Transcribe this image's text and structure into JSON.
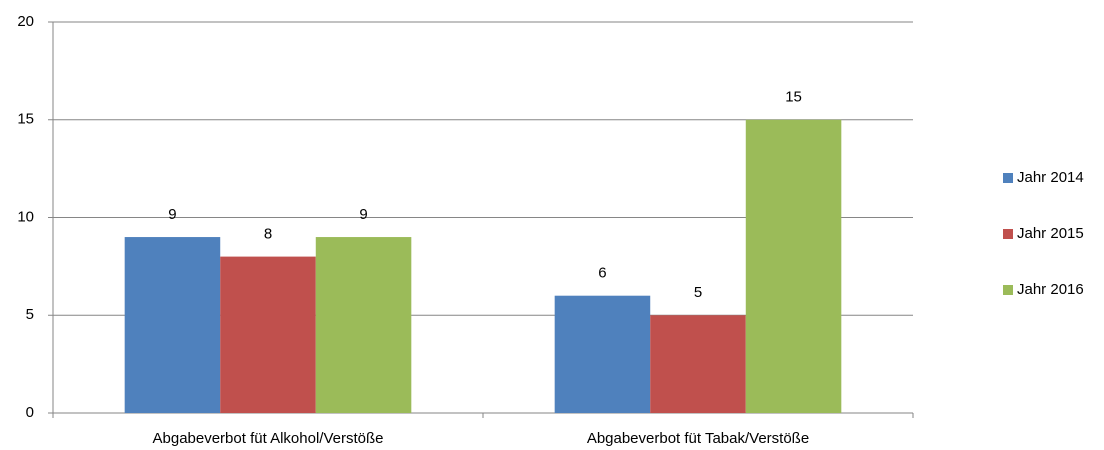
{
  "chart_data": {
    "type": "bar",
    "categories": [
      "Abgabeverbot füt Alkohol/Verstöße",
      "Abgabeverbot füt Tabak/Verstöße"
    ],
    "series": [
      {
        "name": "Jahr 2014",
        "color": "#4f81bd",
        "values": [
          9,
          6
        ]
      },
      {
        "name": "Jahr 2015",
        "color": "#c0504d",
        "values": [
          8,
          5
        ]
      },
      {
        "name": "Jahr 2016",
        "color": "#9bbb59",
        "values": [
          9,
          15
        ]
      }
    ],
    "ylim": [
      0,
      20
    ],
    "yticks": [
      0,
      5,
      10,
      15,
      20
    ],
    "grid": true,
    "legend": "right"
  }
}
